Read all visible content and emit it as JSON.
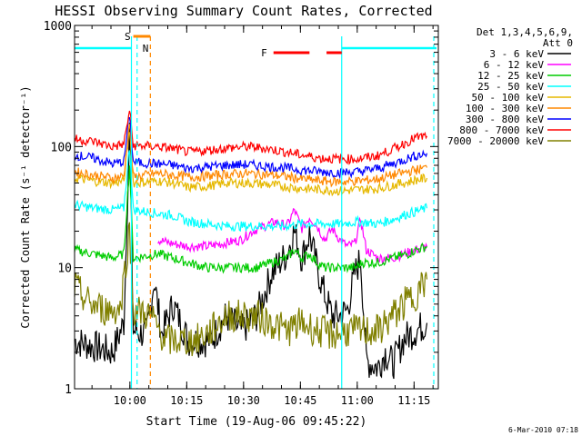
{
  "chart_data": {
    "type": "line",
    "title": "HESSI Observing Summary Count Rates, Corrected",
    "xlabel": "Start Time (19-Aug-06 09:45:22)",
    "ylabel": "Corrected Count Rate (s⁻¹ detector⁻¹)",
    "ylog": true,
    "ylim": [
      1,
      1000
    ],
    "xlim_minutes": [
      0,
      96
    ],
    "x_tick_labels": [
      {
        "label": "10:00",
        "minute": 14.6
      },
      {
        "label": "10:15",
        "minute": 29.6
      },
      {
        "label": "10:30",
        "minute": 44.6
      },
      {
        "label": "10:45",
        "minute": 59.6
      },
      {
        "label": "11:00",
        "minute": 74.6
      },
      {
        "label": "11:15",
        "minute": 89.6
      }
    ],
    "y_tick_labels": [
      {
        "label": "1",
        "value": 1
      },
      {
        "label": "10",
        "value": 10
      },
      {
        "label": "100",
        "value": 100
      },
      {
        "label": "1000",
        "value": 1000
      }
    ],
    "legend_header": [
      "Det 1,3,4,5,6,9,",
      "Att 0"
    ],
    "legend_placement": "right",
    "series": [
      {
        "name": "3 - 6 keV",
        "color": "#000000",
        "points": [
          [
            0,
            2.5
          ],
          [
            10,
            2.0
          ],
          [
            13,
            3.5
          ],
          [
            14.5,
            140
          ],
          [
            15.5,
            3.0
          ],
          [
            19,
            2.8
          ],
          [
            21,
            8
          ],
          [
            23,
            2.8
          ],
          [
            26,
            5
          ],
          [
            30,
            2.5
          ],
          [
            36,
            2.5
          ],
          [
            40,
            4
          ],
          [
            44,
            3
          ],
          [
            48,
            4
          ],
          [
            52,
            9
          ],
          [
            56,
            13
          ],
          [
            58,
            20
          ],
          [
            60,
            12
          ],
          [
            62,
            19
          ],
          [
            64,
            10
          ],
          [
            66,
            6
          ],
          [
            68,
            4
          ],
          [
            70,
            4
          ],
          [
            72,
            4.5
          ],
          [
            74,
            9
          ],
          [
            75.5,
            12
          ],
          [
            77,
            1.7
          ],
          [
            80,
            1.5
          ],
          [
            82,
            2.0
          ],
          [
            84,
            1.6
          ],
          [
            87,
            2.6
          ],
          [
            90,
            3.0
          ],
          [
            93,
            3.5
          ]
        ]
      },
      {
        "name": "6 - 12 keV",
        "color": "#ff00ff",
        "points": [
          [
            22,
            17
          ],
          [
            25,
            16
          ],
          [
            30,
            15
          ],
          [
            35,
            15
          ],
          [
            40,
            16
          ],
          [
            44,
            17
          ],
          [
            47,
            20
          ],
          [
            50,
            22
          ],
          [
            53,
            24
          ],
          [
            56,
            22
          ],
          [
            58,
            30
          ],
          [
            60,
            21
          ],
          [
            62,
            26
          ],
          [
            64,
            22
          ],
          [
            66,
            17
          ],
          [
            68,
            21
          ],
          [
            70,
            17
          ],
          [
            72,
            15
          ],
          [
            74,
            16
          ],
          [
            75.5,
            25
          ],
          [
            77,
            14
          ],
          [
            80,
            12
          ],
          [
            84,
            12
          ],
          [
            87,
            13
          ],
          [
            90,
            14
          ],
          [
            93,
            15
          ]
        ]
      },
      {
        "name": "12 - 25 keV",
        "color": "#00cc00",
        "points": [
          [
            0,
            14
          ],
          [
            5,
            13
          ],
          [
            10,
            12
          ],
          [
            13,
            13
          ],
          [
            14.5,
            70
          ],
          [
            15.5,
            12
          ],
          [
            22,
            13
          ],
          [
            26,
            12
          ],
          [
            30,
            11
          ],
          [
            35,
            10
          ],
          [
            40,
            10
          ],
          [
            44,
            10
          ],
          [
            48,
            10
          ],
          [
            52,
            11
          ],
          [
            56,
            12
          ],
          [
            58,
            14
          ],
          [
            60,
            12
          ],
          [
            62,
            13
          ],
          [
            64,
            11
          ],
          [
            66,
            10
          ],
          [
            70,
            10
          ],
          [
            74,
            10
          ],
          [
            76,
            11
          ],
          [
            80,
            11
          ],
          [
            84,
            12
          ],
          [
            88,
            13
          ],
          [
            90,
            14
          ],
          [
            93,
            15
          ]
        ]
      },
      {
        "name": "25 - 50 keV",
        "color": "#00ffff",
        "points": [
          [
            0,
            33
          ],
          [
            5,
            31
          ],
          [
            10,
            30
          ],
          [
            13,
            31
          ],
          [
            14.5,
            100
          ],
          [
            15.5,
            30
          ],
          [
            22,
            28
          ],
          [
            26,
            27
          ],
          [
            30,
            24
          ],
          [
            35,
            23
          ],
          [
            40,
            22
          ],
          [
            45,
            22
          ],
          [
            50,
            22
          ],
          [
            55,
            22
          ],
          [
            60,
            23
          ],
          [
            65,
            23
          ],
          [
            70,
            23
          ],
          [
            75,
            24
          ],
          [
            80,
            23
          ],
          [
            84,
            25
          ],
          [
            88,
            28
          ],
          [
            90,
            29
          ],
          [
            93,
            31
          ]
        ]
      },
      {
        "name": "50 - 100 keV",
        "color": "#e6b800",
        "points": [
          [
            0,
            55
          ],
          [
            5,
            52
          ],
          [
            10,
            50
          ],
          [
            13,
            52
          ],
          [
            14.5,
            140
          ],
          [
            15.5,
            50
          ],
          [
            22,
            52
          ],
          [
            26,
            50
          ],
          [
            30,
            46
          ],
          [
            35,
            47
          ],
          [
            40,
            50
          ],
          [
            45,
            50
          ],
          [
            50,
            49
          ],
          [
            55,
            47
          ],
          [
            60,
            45
          ],
          [
            65,
            44
          ],
          [
            70,
            43
          ],
          [
            75,
            44
          ],
          [
            80,
            45
          ],
          [
            84,
            48
          ],
          [
            88,
            51
          ],
          [
            90,
            53
          ],
          [
            93,
            55
          ]
        ]
      },
      {
        "name": "100 - 300 keV",
        "color": "#ff8800",
        "points": [
          [
            0,
            62
          ],
          [
            5,
            58
          ],
          [
            10,
            55
          ],
          [
            13,
            57
          ],
          [
            14.5,
            160
          ],
          [
            15.5,
            56
          ],
          [
            22,
            60
          ],
          [
            26,
            58
          ],
          [
            30,
            56
          ],
          [
            35,
            57
          ],
          [
            40,
            59
          ],
          [
            45,
            60
          ],
          [
            50,
            59
          ],
          [
            55,
            57
          ],
          [
            60,
            54
          ],
          [
            65,
            52
          ],
          [
            70,
            51
          ],
          [
            75,
            52
          ],
          [
            80,
            54
          ],
          [
            84,
            58
          ],
          [
            88,
            62
          ],
          [
            90,
            64
          ],
          [
            93,
            67
          ]
        ]
      },
      {
        "name": "300 - 800 keV",
        "color": "#0000ff",
        "points": [
          [
            0,
            85
          ],
          [
            5,
            80
          ],
          [
            10,
            72
          ],
          [
            13,
            75
          ],
          [
            14.5,
            185
          ],
          [
            15.5,
            74
          ],
          [
            22,
            72
          ],
          [
            26,
            70
          ],
          [
            30,
            66
          ],
          [
            35,
            68
          ],
          [
            40,
            70
          ],
          [
            45,
            71
          ],
          [
            50,
            69
          ],
          [
            55,
            67
          ],
          [
            60,
            64
          ],
          [
            65,
            62
          ],
          [
            70,
            61
          ],
          [
            75,
            62
          ],
          [
            80,
            66
          ],
          [
            84,
            72
          ],
          [
            88,
            80
          ],
          [
            90,
            84
          ],
          [
            93,
            88
          ]
        ]
      },
      {
        "name": "800 - 7000 keV",
        "color": "#ff0000",
        "points": [
          [
            0,
            115
          ],
          [
            5,
            110
          ],
          [
            10,
            100
          ],
          [
            13,
            104
          ],
          [
            14.5,
            200
          ],
          [
            15.5,
            102
          ],
          [
            22,
            100
          ],
          [
            26,
            96
          ],
          [
            30,
            90
          ],
          [
            35,
            93
          ],
          [
            40,
            97
          ],
          [
            45,
            100
          ],
          [
            50,
            97
          ],
          [
            55,
            91
          ],
          [
            60,
            85
          ],
          [
            65,
            80
          ],
          [
            70,
            79
          ],
          [
            75,
            79
          ],
          [
            80,
            84
          ],
          [
            84,
            95
          ],
          [
            88,
            110
          ],
          [
            90,
            118
          ],
          [
            93,
            122
          ]
        ]
      },
      {
        "name": "7000 - 20000 keV",
        "color": "#808000",
        "points": [
          [
            0,
            7
          ],
          [
            4,
            5
          ],
          [
            8,
            4.5
          ],
          [
            12,
            4.5
          ],
          [
            14.5,
            20
          ],
          [
            15.5,
            4.5
          ],
          [
            20,
            4
          ],
          [
            24,
            2.5
          ],
          [
            28,
            2.5
          ],
          [
            32,
            2.5
          ],
          [
            36,
            3
          ],
          [
            40,
            4
          ],
          [
            44,
            4
          ],
          [
            48,
            4
          ],
          [
            52,
            3.5
          ],
          [
            56,
            3
          ],
          [
            60,
            3.5
          ],
          [
            64,
            3
          ],
          [
            68,
            2.8
          ],
          [
            72,
            3
          ],
          [
            76,
            3
          ],
          [
            80,
            3
          ],
          [
            84,
            4
          ],
          [
            87,
            5
          ],
          [
            90,
            6
          ],
          [
            93,
            8
          ]
        ]
      }
    ],
    "annotations": {
      "S": {
        "label": "S",
        "color": "#ff8800",
        "start": 15.5,
        "end": 20.0
      },
      "N": {
        "label": "N",
        "color": "#00ffff",
        "minute": 16.5
      },
      "F": {
        "label": "F",
        "color": "#ff0000",
        "segments": [
          [
            52.5,
            62.0
          ],
          [
            66.5,
            70.5
          ]
        ]
      },
      "night_marker_level": 650
    }
  },
  "footer_date": "6-Mar-2010 07:18"
}
